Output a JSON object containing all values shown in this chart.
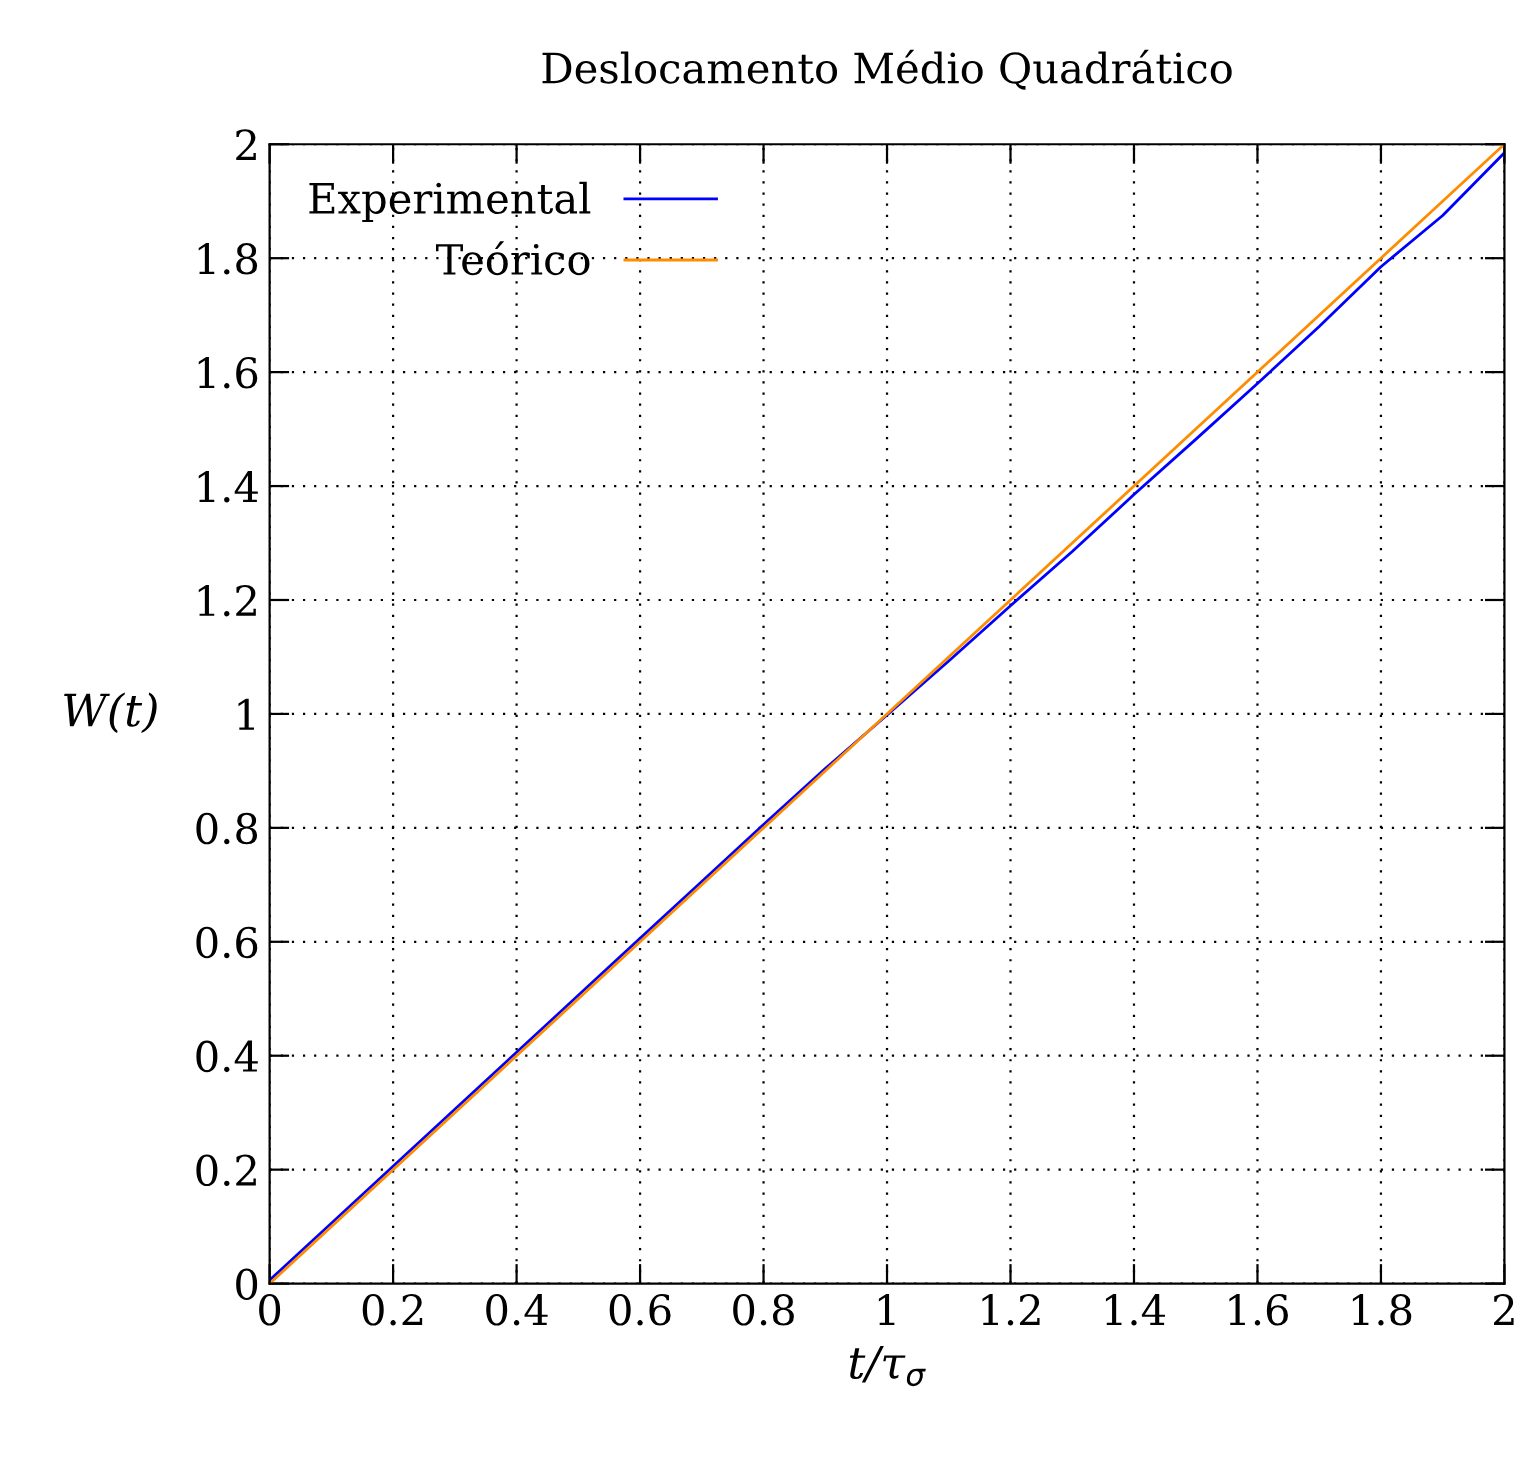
{
  "chart_data": {
    "type": "line",
    "title": "Deslocamento Médio Quadrático",
    "xlabel": "t/τ$_{σ}$",
    "ylabel": "W(t)",
    "xlim": [
      0,
      2
    ],
    "ylim": [
      0,
      2
    ],
    "xticks": [
      0,
      0.2,
      0.4,
      0.6,
      0.8,
      1,
      1.2,
      1.4,
      1.6,
      1.8,
      2
    ],
    "yticks": [
      0,
      0.2,
      0.4,
      0.6,
      0.8,
      1,
      1.2,
      1.4,
      1.6,
      1.8,
      2
    ],
    "grid": true,
    "legend": "top left",
    "line_style": "solid",
    "marker": "none",
    "series": [
      {
        "name": "Experimental",
        "color": "#0000ff",
        "x": [
          0,
          0.1,
          0.2,
          0.3,
          0.4,
          0.5,
          0.6,
          0.7,
          0.8,
          0.9,
          1.0,
          1.1,
          1.2,
          1.3,
          1.4,
          1.5,
          1.6,
          1.7,
          1.8,
          1.9,
          2.0
        ],
        "values": [
          0.006,
          0.106,
          0.206,
          0.306,
          0.406,
          0.506,
          0.606,
          0.706,
          0.806,
          0.904,
          0.998,
          1.093,
          1.19,
          1.285,
          1.385,
          1.482,
          1.58,
          1.68,
          1.785,
          1.875,
          1.985
        ]
      },
      {
        "name": "Teórico",
        "color": "#ff8c00",
        "x": [
          0,
          2
        ],
        "values": [
          0,
          2
        ]
      }
    ]
  }
}
